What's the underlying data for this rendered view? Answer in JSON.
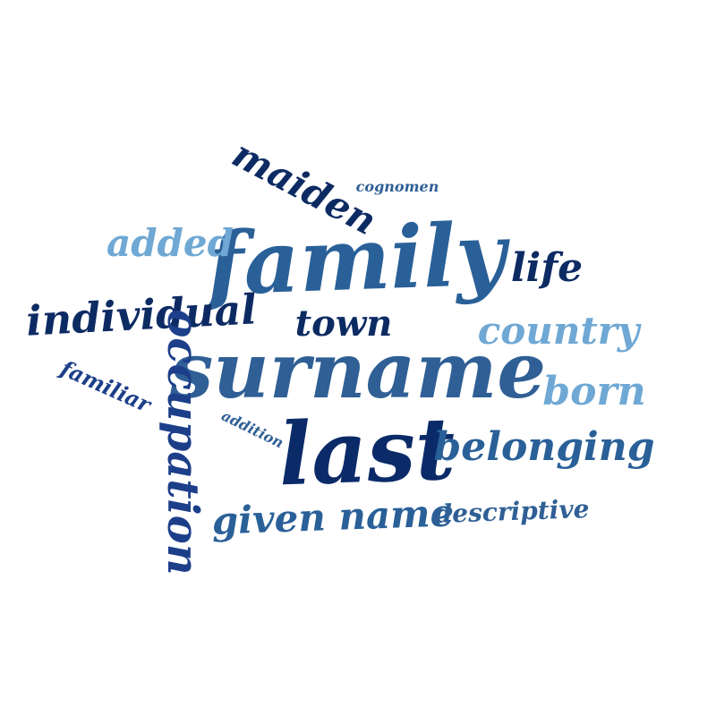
{
  "word_cloud": {
    "words": [
      {
        "text": "family",
        "color": "#2a6098"
      },
      {
        "text": "surname",
        "color": "#2f5f95"
      },
      {
        "text": "last",
        "color": "#0b2a68"
      },
      {
        "text": "maiden",
        "color": "#0d2b63"
      },
      {
        "text": "cognomen",
        "color": "#2f5f95"
      },
      {
        "text": "added",
        "color": "#6fa8d4"
      },
      {
        "text": "life",
        "color": "#0d2b63"
      },
      {
        "text": "individual",
        "color": "#0d2b63"
      },
      {
        "text": "town",
        "color": "#0d2b63"
      },
      {
        "text": "country",
        "color": "#6fa8d4"
      },
      {
        "text": "born",
        "color": "#6fa8d4"
      },
      {
        "text": "belonging",
        "color": "#2a6098"
      },
      {
        "text": "familiar",
        "color": "#1d3f8a"
      },
      {
        "text": "addition",
        "color": "#2f5f95"
      },
      {
        "text": "occupation",
        "color": "#1d3f8a"
      },
      {
        "text": "given name",
        "color": "#2a6098"
      },
      {
        "text": "descriptive",
        "color": "#2f5f95"
      }
    ]
  }
}
